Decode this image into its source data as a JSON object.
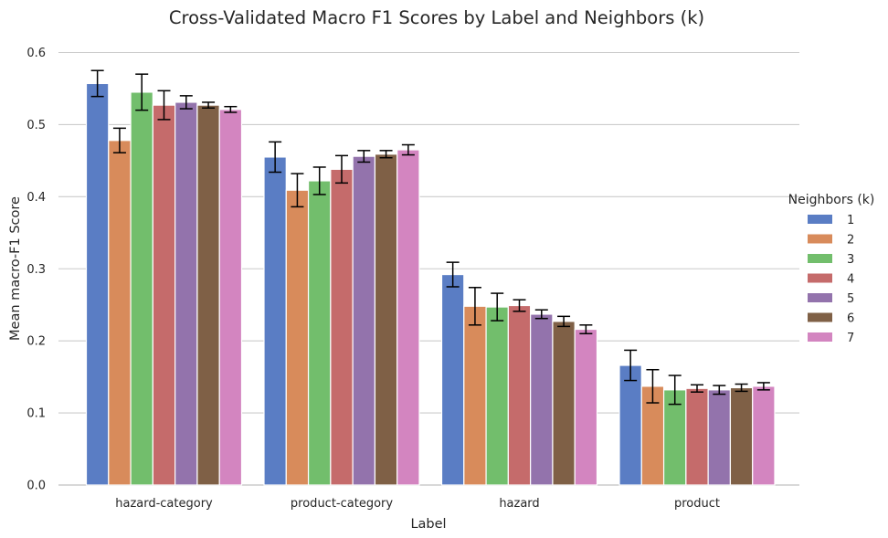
{
  "chart_data": {
    "type": "bar",
    "title": "Cross-Validated Macro F1 Scores by Label and Neighbors (k)",
    "xlabel": "Label",
    "ylabel": "Mean macro-F1 Score",
    "ylim": [
      0,
      0.6
    ],
    "yticks": [
      0.0,
      0.1,
      0.2,
      0.3,
      0.4,
      0.5,
      0.6
    ],
    "ytick_labels": [
      "0.0",
      "0.1",
      "0.2",
      "0.3",
      "0.4",
      "0.5",
      "0.6"
    ],
    "grid": "horizontal",
    "legend": {
      "title": "Neighbors (k)",
      "placement": "right"
    },
    "categories": [
      "hazard-category",
      "product-category",
      "hazard",
      "product"
    ],
    "series": [
      {
        "name": "1",
        "color": "#5a7dc4",
        "values": [
          0.557,
          0.455,
          0.292,
          0.166
        ],
        "errors": [
          0.018,
          0.021,
          0.017,
          0.021
        ]
      },
      {
        "name": "2",
        "color": "#d88b5b",
        "values": [
          0.478,
          0.409,
          0.248,
          0.137
        ],
        "errors": [
          0.017,
          0.023,
          0.026,
          0.023
        ]
      },
      {
        "name": "3",
        "color": "#72be6c",
        "values": [
          0.545,
          0.422,
          0.247,
          0.132
        ],
        "errors": [
          0.025,
          0.019,
          0.019,
          0.02
        ]
      },
      {
        "name": "4",
        "color": "#c56b6b",
        "values": [
          0.527,
          0.438,
          0.249,
          0.134
        ],
        "errors": [
          0.02,
          0.019,
          0.008,
          0.005
        ]
      },
      {
        "name": "5",
        "color": "#9373ac",
        "values": [
          0.531,
          0.456,
          0.237,
          0.132
        ],
        "errors": [
          0.009,
          0.008,
          0.006,
          0.006
        ]
      },
      {
        "name": "6",
        "color": "#7f6046",
        "values": [
          0.527,
          0.459,
          0.227,
          0.135
        ],
        "errors": [
          0.004,
          0.005,
          0.007,
          0.005
        ]
      },
      {
        "name": "7",
        "color": "#d385c0",
        "values": [
          0.521,
          0.465,
          0.216,
          0.137
        ],
        "errors": [
          0.004,
          0.007,
          0.006,
          0.005
        ]
      }
    ]
  }
}
